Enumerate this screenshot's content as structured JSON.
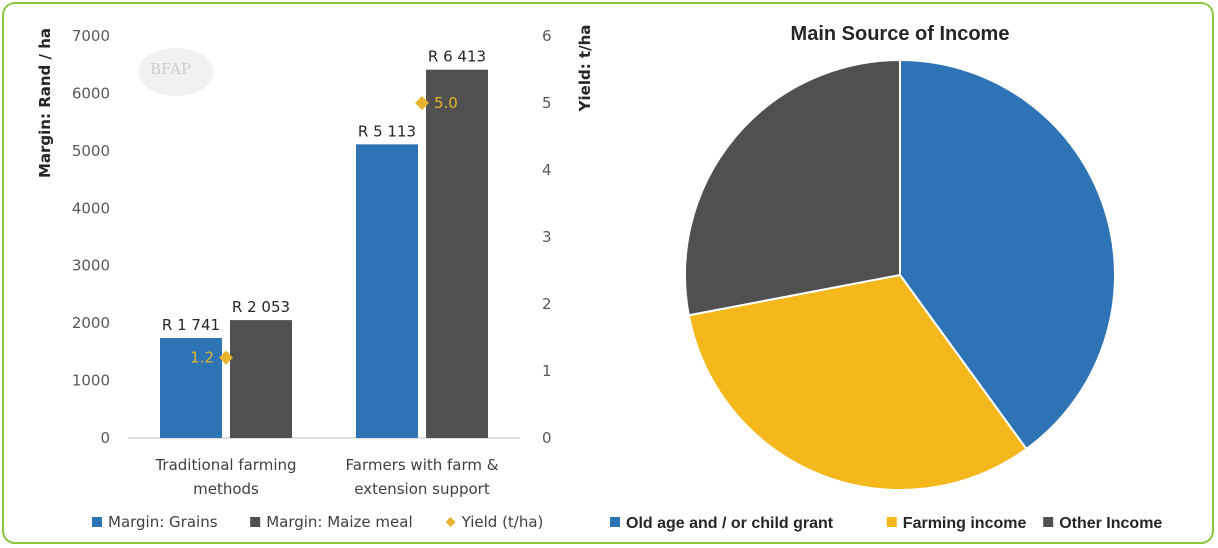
{
  "colors": {
    "grains": "#2e74b5",
    "maize_meal": "#505050",
    "yield": "#e6b42c",
    "grant": "#2e74b5",
    "farming": "#f4b81c",
    "other": "#505050",
    "frame": "#8cc63f"
  },
  "logo": {
    "text": "BFAP"
  },
  "chart_data": [
    {
      "type": "bar",
      "categories": [
        [
          "Traditional farming",
          "methods"
        ],
        [
          "Farmers with farm &",
          "extension support"
        ]
      ],
      "ylabel": "Margin: Rand / ha",
      "y2label": "Yield: t/ha",
      "ylim": [
        0,
        7000
      ],
      "y2lim": [
        0,
        6
      ],
      "yticks": [
        "0",
        "1000",
        "2000",
        "3000",
        "4000",
        "5000",
        "6000",
        "7000"
      ],
      "y2ticks": [
        "0",
        "1",
        "2",
        "3",
        "4",
        "5",
        "6"
      ],
      "grid": false,
      "legend_position": "bottom",
      "series": [
        {
          "name": "Margin: Grains",
          "type": "bar",
          "values": [
            1741,
            5113
          ],
          "labels": [
            "R 1 741",
            "R 5 113"
          ]
        },
        {
          "name": "Margin: Maize meal",
          "type": "bar",
          "values": [
            2053,
            6413
          ],
          "labels": [
            "R 2 053",
            "R 6 413"
          ]
        },
        {
          "name": "Yield (t/ha)",
          "type": "point",
          "axis": "secondary",
          "values": [
            1.2,
            5.0
          ],
          "labels": [
            "1.2",
            "5.0"
          ]
        }
      ]
    },
    {
      "type": "pie",
      "title": "Main Source of Income",
      "legend_position": "bottom",
      "slices": [
        {
          "name": "Old age and / or child grant",
          "value": 40
        },
        {
          "name": "Farming income",
          "value": 32
        },
        {
          "name": "Other Income",
          "value": 28
        }
      ]
    }
  ]
}
